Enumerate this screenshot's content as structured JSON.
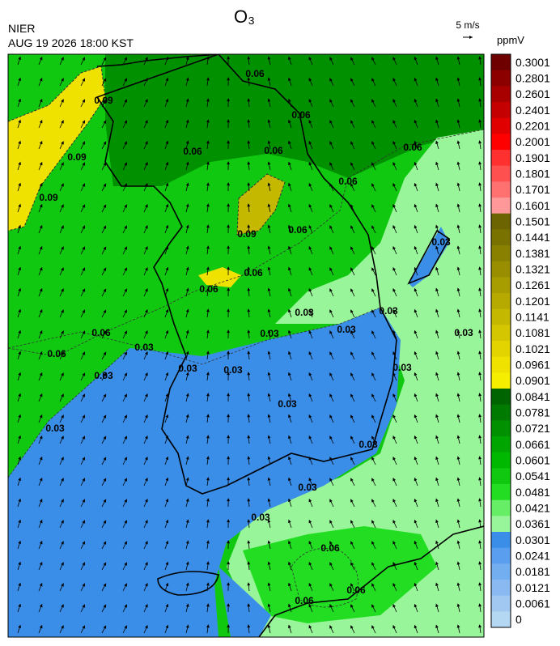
{
  "header": {
    "title": "O₃",
    "agency": "NIER",
    "timestamp": "AUG 19 2026 18:00 KST",
    "wind_reference": "5 m/s"
  },
  "colorbar": {
    "unit": "ppmV",
    "levels": [
      0.3001,
      0.2801,
      0.2601,
      0.2401,
      0.2201,
      0.2001,
      0.1901,
      0.1801,
      0.1701,
      0.1601,
      0.1501,
      0.1441,
      0.1381,
      0.1321,
      0.1261,
      0.1201,
      0.1141,
      0.1081,
      0.1021,
      0.0961,
      0.0901,
      0.0841,
      0.0781,
      0.0721,
      0.0661,
      0.0601,
      0.0541,
      0.0481,
      0.0421,
      0.0361,
      0.0301,
      0.0241,
      0.0181,
      0.0121,
      0.0061,
      0
    ],
    "colors": [
      "#6e0000",
      "#8c0000",
      "#a80000",
      "#c40000",
      "#e00000",
      "#ff0000",
      "#ff3030",
      "#ff5050",
      "#ff7070",
      "#ff9898",
      "#6b6400",
      "#7a7200",
      "#898000",
      "#988e00",
      "#a79c00",
      "#b6aa00",
      "#c5b800",
      "#d4c600",
      "#e3d400",
      "#efe200",
      "#f5ee00",
      "#006400",
      "#007a00",
      "#009000",
      "#00a500",
      "#00b800",
      "#11c811",
      "#22dd22",
      "#66ee66",
      "#99f599",
      "#3a8ee8",
      "#5a9ef0",
      "#72aef0",
      "#8ab8f0",
      "#a0c8f0",
      "#b4d8f2"
    ]
  },
  "contour_labels": [
    "0.06",
    "0.09",
    "0.09",
    "0.09",
    "0.06",
    "0.06",
    "0.06",
    "0.06",
    "0.06",
    "0.06",
    "0.09",
    "0.06",
    "0.06",
    "0.06",
    "0.06",
    "0.03",
    "0.03",
    "0.03",
    "0.03",
    "0.03",
    "0.03",
    "0.03",
    "0.03",
    "0.03",
    "0.03",
    "0.03",
    "0.03",
    "0.03",
    "0.03",
    "0.06",
    "0.06",
    "0.06",
    "0.03",
    "0.03"
  ]
}
